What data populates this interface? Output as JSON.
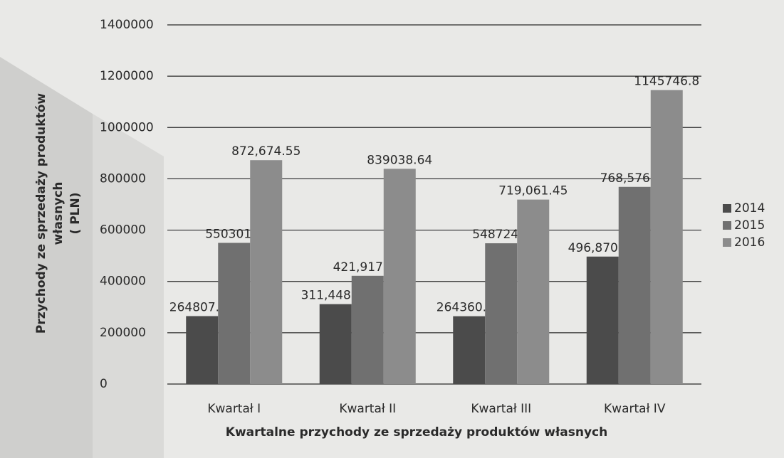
{
  "chart_data": {
    "type": "bar",
    "categories": [
      "Kwartał I",
      "Kwartał II",
      "Kwartał III",
      "Kwartał IV"
    ],
    "series": [
      {
        "name": "2014",
        "color": "#4b4b4b",
        "values": [
          264807.86,
          311448.26,
          264360.46,
          496870.38
        ],
        "value_labels": [
          "264807.86",
          "311,448.26",
          "264360.46",
          "496,870.38"
        ]
      },
      {
        "name": "2015",
        "color": "#707070",
        "values": [
          550301.6,
          421917.64,
          548724.3,
          768576.59
        ],
        "value_labels": [
          "550301.6",
          "421,917.64",
          "548724.3",
          "768,576.59"
        ]
      },
      {
        "name": "2016",
        "color": "#8c8c8c",
        "values": [
          872674.55,
          839038.64,
          719061.45,
          1145746.8
        ],
        "value_labels": [
          "872,674.55",
          "839038.64",
          "719,061.45",
          "1145746.8"
        ]
      }
    ],
    "ylim": [
      0,
      1400000
    ],
    "yticks": [
      0,
      200000,
      400000,
      600000,
      800000,
      1000000,
      1200000,
      1400000
    ],
    "grid": true,
    "legend": "right",
    "xlabel": "Kwartalne przychody ze sprzedaży produktów własnych",
    "ylabel": [
      "Przychody ze sprzedaży produktów",
      "własnych",
      "( PLN)"
    ]
  }
}
